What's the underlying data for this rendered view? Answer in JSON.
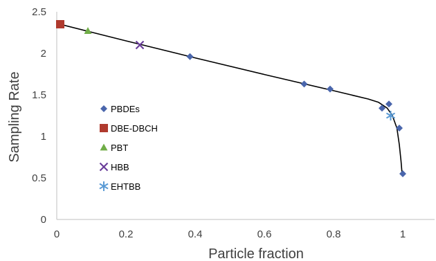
{
  "chart_data": {
    "type": "scatter",
    "title": "",
    "xlabel": "Particle fraction",
    "ylabel": "Sampling Rate",
    "xlim": [
      0,
      1.1
    ],
    "ylim": [
      0,
      2.5
    ],
    "xticks": [
      "0",
      "0.2",
      "0.4",
      "0.6",
      "0.8",
      "1"
    ],
    "yticks": [
      "0",
      "0.5",
      "1",
      "1.5",
      "2",
      "2.5"
    ],
    "grid": false,
    "legend_position": "left",
    "series": [
      {
        "name": "PBDEs",
        "marker": "diamond",
        "color": "#4A66AC",
        "points": [
          {
            "x": 0.385,
            "y": 1.96
          },
          {
            "x": 0.715,
            "y": 1.63
          },
          {
            "x": 0.79,
            "y": 1.57
          },
          {
            "x": 0.94,
            "y": 1.34
          },
          {
            "x": 0.96,
            "y": 1.39
          },
          {
            "x": 0.99,
            "y": 1.1
          },
          {
            "x": 1.0,
            "y": 0.55
          }
        ]
      },
      {
        "name": "DBE-DBCH",
        "marker": "square",
        "color": "#B03A2E",
        "points": [
          {
            "x": 0.01,
            "y": 2.35
          }
        ]
      },
      {
        "name": "PBT",
        "marker": "triangle",
        "color": "#70AD47",
        "points": [
          {
            "x": 0.09,
            "y": 2.27
          }
        ]
      },
      {
        "name": "HBB",
        "marker": "x",
        "color": "#6A3D9A",
        "points": [
          {
            "x": 0.24,
            "y": 2.1
          }
        ]
      },
      {
        "name": "EHTBB",
        "marker": "asterisk",
        "color": "#5B9BD5",
        "points": [
          {
            "x": 0.965,
            "y": 1.25
          }
        ]
      }
    ],
    "trendline": {
      "color": "#000000",
      "points": [
        {
          "x": 0.0,
          "y": 2.36
        },
        {
          "x": 0.2,
          "y": 2.15
        },
        {
          "x": 0.4,
          "y": 1.945
        },
        {
          "x": 0.6,
          "y": 1.745
        },
        {
          "x": 0.8,
          "y": 1.55
        },
        {
          "x": 0.9,
          "y": 1.45
        },
        {
          "x": 0.93,
          "y": 1.41
        },
        {
          "x": 0.955,
          "y": 1.34
        },
        {
          "x": 0.97,
          "y": 1.25
        },
        {
          "x": 0.983,
          "y": 1.1
        },
        {
          "x": 0.99,
          "y": 0.9
        },
        {
          "x": 0.995,
          "y": 0.7
        },
        {
          "x": 0.998,
          "y": 0.55
        }
      ]
    }
  }
}
